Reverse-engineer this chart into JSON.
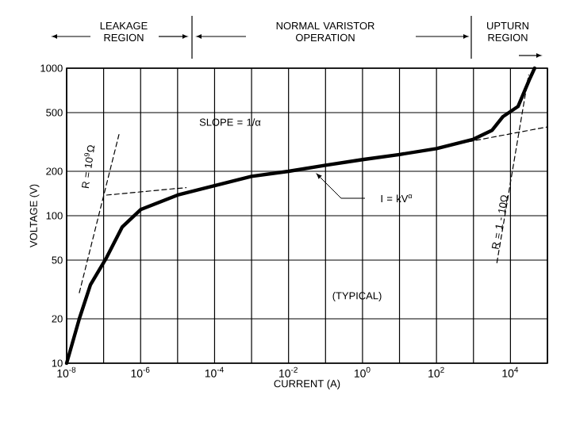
{
  "chart_data": {
    "type": "line",
    "xlabel": "CURRENT (A)",
    "ylabel": "VOLTAGE (V)",
    "log": "xy",
    "grid": true,
    "marker": "none",
    "xlim": [
      1e-08,
      100000.0
    ],
    "ylim": [
      10,
      1000
    ],
    "xticks": [
      {
        "value": 1e-08,
        "label": "10$^{-8}$"
      },
      {
        "value": 1e-07,
        "label": null
      },
      {
        "value": 1e-06,
        "label": "10$^{-6}$"
      },
      {
        "value": 1e-05,
        "label": null
      },
      {
        "value": 0.0001,
        "label": "10$^{-4}$"
      },
      {
        "value": 0.001,
        "label": null
      },
      {
        "value": 0.01,
        "label": "10$^{-2}$"
      },
      {
        "value": 0.1,
        "label": null
      },
      {
        "value": 1,
        "label": "10$^{0}$"
      },
      {
        "value": 10,
        "label": null
      },
      {
        "value": 100,
        "label": "10$^{2}$"
      },
      {
        "value": 1000,
        "label": null
      },
      {
        "value": 10000,
        "label": "10$^{4}$"
      },
      {
        "value": 100000.0,
        "label": null
      }
    ],
    "yticks": [
      10,
      20,
      50,
      100,
      200,
      500,
      1000
    ],
    "series": [
      {
        "color": "#000000",
        "line_style": "solid",
        "x": [
          1e-08,
          2.2e-08,
          4.4e-08,
          1.2e-07,
          3.2e-07,
          1e-06,
          1e-05,
          0.0001,
          0.001,
          0.01,
          0.1,
          1,
          10,
          100,
          1000,
          3200,
          6300,
          16000,
          32000,
          45000
        ],
        "values": [
          10,
          20,
          34,
          52,
          84,
          110,
          138,
          160,
          185,
          200,
          220,
          240,
          260,
          285,
          330,
          380,
          470,
          550,
          830,
          1000
        ]
      },
      {
        "color": "#000000",
        "line_style": "dashed",
        "x": [
          2.2e-08,
          2.6e-07
        ],
        "values": [
          30,
          355
        ]
      },
      {
        "color": "#000000",
        "line_style": "dashed",
        "x": [
          1.2e-07,
          1.7e-05
        ],
        "values": [
          138,
          155
        ]
      },
      {
        "color": "#000000",
        "line_style": "dashed",
        "x": [
          440,
          100000.0
        ],
        "values": [
          310,
          400
        ]
      },
      {
        "color": "#000000",
        "line_style": "dashed",
        "x": [
          4300,
          31000
        ],
        "values": [
          48,
          900
        ]
      }
    ],
    "annotations": [
      "LEAKAGE REGION",
      "NORMAL VARISTOR OPERATION",
      "UPTURN REGION",
      "SLOPE = 1/α",
      "I = kV$^{α}$",
      "R = 10$^{9}$Ω",
      "R = 1 - 10Ω",
      "(TYPICAL)"
    ]
  }
}
